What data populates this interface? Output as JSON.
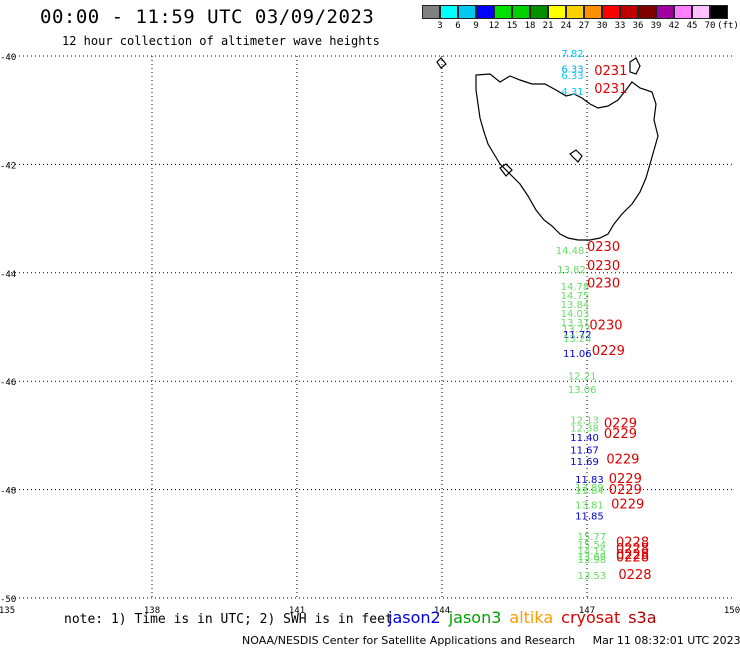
{
  "header": {
    "title": "00:00 - 11:59 UTC 03/09/2023",
    "subtitle": "12 hour collection of altimeter wave heights"
  },
  "colorbar": {
    "colors": [
      "#808080",
      "#00ffff",
      "#00c8f0",
      "#0000ff",
      "#00e000",
      "#00d000",
      "#009000",
      "#ffff00",
      "#ffd000",
      "#ff9000",
      "#ff0000",
      "#c00000",
      "#800000",
      "#a000a0",
      "#ff80ff",
      "#ffc0ff",
      "#000000"
    ],
    "labels": [
      "3",
      "6",
      "9",
      "12",
      "15",
      "18",
      "21",
      "24",
      "27",
      "30",
      "33",
      "36",
      "39",
      "42",
      "45",
      "70",
      "(ft)"
    ]
  },
  "axes": {
    "lat_labels": [
      "-40",
      "-42",
      "-44",
      "-46",
      "-48",
      "-50"
    ],
    "lon_labels": [
      "135",
      "138",
      "141",
      "144",
      "147",
      "150"
    ]
  },
  "footer": {
    "note": "note: 1) Time is in UTC; 2) SWH is in feet",
    "legend": [
      {
        "name": "jason2",
        "color": "#0000dd"
      },
      {
        "name": "jason3",
        "color": "#00a000"
      },
      {
        "name": "altika",
        "color": "#ff9a00"
      },
      {
        "name": "cryosat",
        "color": "#dd0000"
      },
      {
        "name": "s3a",
        "color": "#aa0000"
      }
    ],
    "credit_org": "NOAA/NESDIS Center for Satellite Applications and Research",
    "credit_time": "Mar 11 08:32:01 UTC 2023"
  },
  "observations": [
    {
      "value": "7.82",
      "lon": 146.7,
      "lat": -40.02,
      "color": "#00ccee"
    },
    {
      "value": "6.33",
      "lon": 146.7,
      "lat": -40.3,
      "color": "#00aaee"
    },
    {
      "value": "6.33",
      "lon": 146.7,
      "lat": -40.42,
      "color": "#00ccee"
    },
    {
      "value": "4.31",
      "lon": 146.7,
      "lat": -40.72,
      "color": "#00ccee"
    },
    {
      "value": "14.48",
      "lon": 146.65,
      "lat": -43.65,
      "color": "#66dd66"
    },
    {
      "value": "13.82",
      "lon": 146.68,
      "lat": -44.0,
      "color": "#66dd66"
    },
    {
      "value": "14.78",
      "lon": 146.75,
      "lat": -44.32,
      "color": "#66dd66"
    },
    {
      "value": "14.75",
      "lon": 146.75,
      "lat": -44.48,
      "color": "#66dd66"
    },
    {
      "value": "13.84",
      "lon": 146.75,
      "lat": -44.65,
      "color": "#66dd66"
    },
    {
      "value": "14.03",
      "lon": 146.75,
      "lat": -44.82,
      "color": "#66dd66"
    },
    {
      "value": "13.37",
      "lon": 146.75,
      "lat": -44.98,
      "color": "#66dd66"
    },
    {
      "value": "13.77",
      "lon": 146.78,
      "lat": -45.1,
      "color": "#66dd66"
    },
    {
      "value": "11.72",
      "lon": 146.8,
      "lat": -45.2,
      "color": "#0000cc"
    },
    {
      "value": "13.24",
      "lon": 146.8,
      "lat": -45.28,
      "color": "#66dd66"
    },
    {
      "value": "11.06",
      "lon": 146.8,
      "lat": -45.55,
      "color": "#0000cc"
    },
    {
      "value": "12.21",
      "lon": 146.9,
      "lat": -45.97,
      "color": "#66dd66"
    },
    {
      "value": "13.06",
      "lon": 146.9,
      "lat": -46.22,
      "color": "#66dd66"
    },
    {
      "value": "12.13",
      "lon": 146.95,
      "lat": -46.78,
      "color": "#66dd66"
    },
    {
      "value": "12.38",
      "lon": 146.95,
      "lat": -46.93,
      "color": "#66dd66"
    },
    {
      "value": "11.40",
      "lon": 146.95,
      "lat": -47.1,
      "color": "#0000cc"
    },
    {
      "value": "11.67",
      "lon": 146.95,
      "lat": -47.33,
      "color": "#0000cc"
    },
    {
      "value": "11.69",
      "lon": 146.95,
      "lat": -47.55,
      "color": "#0000cc"
    },
    {
      "value": "11.83",
      "lon": 147.05,
      "lat": -47.88,
      "color": "#0000cc"
    },
    {
      "value": "13.89",
      "lon": 147.05,
      "lat": -48.03,
      "color": "#66dd66"
    },
    {
      "value": "11.84",
      "lon": 147.05,
      "lat": -48.08,
      "color": "#66dd66"
    },
    {
      "value": "13.81",
      "lon": 147.05,
      "lat": -48.35,
      "color": "#66dd66"
    },
    {
      "value": "11.85",
      "lon": 147.05,
      "lat": -48.55,
      "color": "#0000cc"
    },
    {
      "value": "15.77",
      "lon": 147.1,
      "lat": -48.93,
      "color": "#66dd66"
    },
    {
      "value": "15.54",
      "lon": 147.1,
      "lat": -49.08,
      "color": "#66dd66"
    },
    {
      "value": "14.15",
      "lon": 147.1,
      "lat": -49.2,
      "color": "#66dd66"
    },
    {
      "value": "13.69",
      "lon": 147.1,
      "lat": -49.3,
      "color": "#66dd66"
    },
    {
      "value": "13.98",
      "lon": 147.1,
      "lat": -49.35,
      "color": "#66dd66"
    },
    {
      "value": "13.53",
      "lon": 147.1,
      "lat": -49.65,
      "color": "#66dd66"
    }
  ],
  "times": [
    {
      "value": "0231",
      "lon": 147.15,
      "lat": -40.35
    },
    {
      "value": "0231",
      "lon": 147.15,
      "lat": -40.68
    },
    {
      "value": "0230",
      "lon": 147.0,
      "lat": -43.6
    },
    {
      "value": "0230",
      "lon": 147.0,
      "lat": -43.95
    },
    {
      "value": "0230",
      "lon": 147.0,
      "lat": -44.27
    },
    {
      "value": "0230",
      "lon": 147.05,
      "lat": -45.05
    },
    {
      "value": "0229",
      "lon": 147.1,
      "lat": -45.52
    },
    {
      "value": "0229",
      "lon": 147.35,
      "lat": -46.85
    },
    {
      "value": "0229",
      "lon": 147.35,
      "lat": -47.05
    },
    {
      "value": "0229",
      "lon": 147.4,
      "lat": -47.52
    },
    {
      "value": "0229",
      "lon": 147.45,
      "lat": -47.88
    },
    {
      "value": "0229",
      "lon": 147.45,
      "lat": -48.08
    },
    {
      "value": "0229",
      "lon": 147.5,
      "lat": -48.35
    },
    {
      "value": "0228",
      "lon": 147.6,
      "lat": -49.05
    },
    {
      "value": "0228",
      "lon": 147.6,
      "lat": -49.17
    },
    {
      "value": "0228",
      "lon": 147.6,
      "lat": -49.28
    },
    {
      "value": "0228",
      "lon": 147.6,
      "lat": -49.33
    },
    {
      "value": "0228",
      "lon": 147.65,
      "lat": -49.65
    }
  ]
}
